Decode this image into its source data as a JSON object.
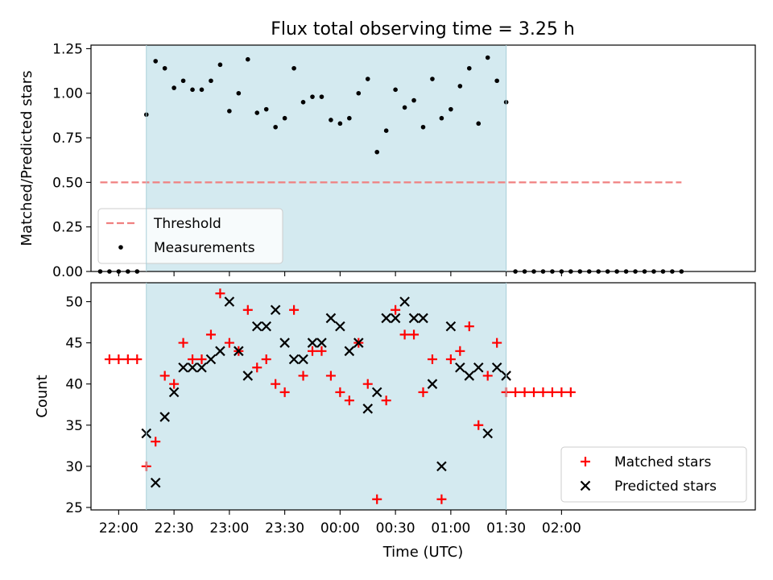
{
  "chart_data": [
    {
      "type": "scatter",
      "title": "Flux total observing time = 3.25 h",
      "xlabel": "",
      "ylabel": "Matched/Predicted stars",
      "ylim": [
        0,
        1.27
      ],
      "yticks": [
        "0.00",
        "0.25",
        "0.50",
        "0.75",
        "1.00",
        "1.25"
      ],
      "ytick_values": [
        0,
        0.25,
        0.5,
        0.75,
        1.0,
        1.25
      ],
      "xlim_min": [
        -15,
        345
      ],
      "observing_window_min": [
        15,
        210
      ],
      "threshold": {
        "name": "Threshold",
        "value": 0.5,
        "x_min": [
          -10,
          305
        ],
        "color": "#f08080"
      },
      "legend_position": "lower-left",
      "series": [
        {
          "name": "Measurements",
          "marker": "dot",
          "color": "#000000",
          "x_min": [
            -10,
            -5,
            0,
            5,
            10,
            15,
            20,
            25,
            30,
            35,
            40,
            45,
            50,
            55,
            60,
            65,
            70,
            75,
            80,
            85,
            90,
            95,
            100,
            105,
            110,
            115,
            120,
            125,
            130,
            135,
            140,
            145,
            150,
            155,
            160,
            165,
            170,
            175,
            180,
            185,
            190,
            195,
            200,
            205,
            210,
            215,
            220,
            225,
            230,
            235,
            240,
            245,
            250,
            255,
            260,
            265,
            270,
            275,
            280,
            285,
            290,
            295,
            300,
            305
          ],
          "y": [
            0,
            0,
            0,
            0,
            0,
            0.88,
            1.18,
            1.14,
            1.03,
            1.07,
            1.02,
            1.02,
            1.07,
            1.16,
            0.9,
            1.0,
            1.19,
            0.89,
            0.91,
            0.81,
            0.86,
            1.14,
            0.95,
            0.98,
            0.98,
            0.85,
            0.83,
            0.86,
            1.0,
            1.08,
            0.67,
            0.79,
            1.02,
            0.92,
            0.96,
            0.81,
            1.08,
            0.86,
            0.91,
            1.04,
            1.14,
            0.83,
            1.2,
            1.07,
            0.95,
            0,
            0,
            0,
            0,
            0,
            0,
            0,
            0,
            0,
            0,
            0,
            0,
            0,
            0,
            0,
            0,
            0,
            0,
            0
          ]
        }
      ]
    },
    {
      "type": "scatter",
      "title": "",
      "xlabel": "Time (UTC)",
      "ylabel": "Count",
      "ylim": [
        24.7,
        52.3
      ],
      "yticks": [
        "25",
        "30",
        "35",
        "40",
        "45",
        "50"
      ],
      "ytick_values": [
        25,
        30,
        35,
        40,
        45,
        50
      ],
      "xlim_min": [
        -15,
        345
      ],
      "observing_window_min": [
        15,
        210
      ],
      "xtick_labels": [
        "22:00",
        "22:30",
        "23:00",
        "23:30",
        "00:00",
        "00:30",
        "01:00",
        "01:30",
        "02:00"
      ],
      "xtick_min": [
        0,
        30,
        60,
        90,
        120,
        150,
        180,
        210,
        240
      ],
      "legend_position": "lower-right",
      "series": [
        {
          "name": "Matched stars",
          "marker": "plus",
          "color": "#ff0000",
          "x_min": [
            -5,
            0,
            5,
            10,
            15,
            20,
            25,
            30,
            35,
            40,
            45,
            50,
            55,
            60,
            65,
            70,
            75,
            80,
            85,
            90,
            95,
            100,
            105,
            110,
            115,
            120,
            125,
            130,
            135,
            140,
            145,
            150,
            155,
            160,
            165,
            170,
            175,
            180,
            185,
            190,
            195,
            200,
            205,
            210,
            215,
            220,
            225,
            230,
            235,
            240,
            245
          ],
          "y": [
            43,
            43,
            43,
            43,
            30,
            33,
            41,
            40,
            45,
            43,
            43,
            46,
            51,
            45,
            44,
            49,
            42,
            43,
            40,
            39,
            49,
            41,
            44,
            44,
            41,
            39,
            38,
            45,
            40,
            26,
            38,
            49,
            46,
            46,
            39,
            43,
            26,
            43,
            44,
            47,
            35,
            41,
            45,
            39,
            39,
            39,
            39,
            39,
            39,
            39,
            39
          ]
        },
        {
          "name": "Predicted stars",
          "marker": "x",
          "color": "#000000",
          "x_min": [
            15,
            20,
            25,
            30,
            35,
            40,
            45,
            50,
            55,
            60,
            65,
            70,
            75,
            80,
            85,
            90,
            95,
            100,
            105,
            110,
            115,
            120,
            125,
            130,
            135,
            140,
            145,
            150,
            155,
            160,
            165,
            170,
            175,
            180,
            185,
            190,
            195,
            200,
            205,
            210
          ],
          "y": [
            34,
            28,
            36,
            39,
            42,
            42,
            42,
            43,
            44,
            50,
            44,
            41,
            47,
            47,
            49,
            45,
            43,
            43,
            45,
            45,
            48,
            47,
            44,
            45,
            37,
            39,
            48,
            48,
            50,
            48,
            48,
            40,
            30,
            47,
            42,
            41,
            42,
            34,
            42,
            41
          ]
        }
      ]
    }
  ],
  "colors": {
    "observing_band": "#d4eaf0",
    "matched": "#ff0000",
    "predicted": "#000000",
    "threshold": "#f08080"
  }
}
